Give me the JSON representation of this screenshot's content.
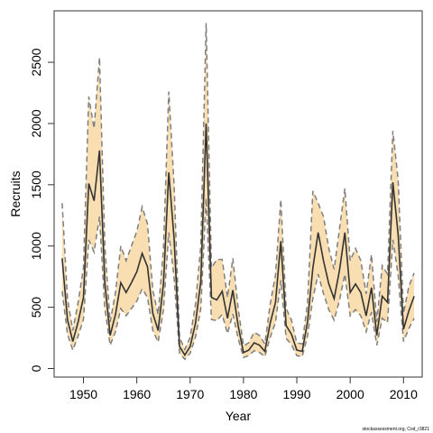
{
  "chart_data": {
    "type": "line",
    "xlabel": "Year",
    "ylabel": "Recruits",
    "xlim": [
      1944.5,
      2013.5
    ],
    "ylim": [
      -70,
      2920
    ],
    "x_ticks": [
      1950,
      1960,
      1970,
      1980,
      1990,
      2000,
      2010
    ],
    "y_ticks": [
      0,
      500,
      1000,
      1500,
      2000,
      2500
    ],
    "grid": false,
    "legend": "none",
    "colors": {
      "band": "#f8deb0",
      "bounds": "#7f7f7f",
      "estimate": "#333333",
      "frame": "#333333"
    },
    "x": [
      1946,
      1947,
      1948,
      1949,
      1950,
      1951,
      1952,
      1953,
      1954,
      1955,
      1956,
      1957,
      1958,
      1959,
      1960,
      1961,
      1962,
      1963,
      1964,
      1965,
      1966,
      1967,
      1968,
      1969,
      1970,
      1971,
      1972,
      1973,
      1974,
      1975,
      1976,
      1977,
      1978,
      1979,
      1980,
      1981,
      1982,
      1983,
      1984,
      1985,
      1986,
      1987,
      1988,
      1989,
      1990,
      1991,
      1992,
      1993,
      1994,
      1995,
      1996,
      1997,
      1998,
      1999,
      2000,
      2001,
      2002,
      2003,
      2004,
      2005,
      2006,
      2007,
      2008,
      2009,
      2010,
      2011,
      2012
    ],
    "series": [
      {
        "values": [
          900,
          400,
          220,
          380,
          580,
          1510,
          1370,
          1780,
          700,
          270,
          440,
          700,
          620,
          700,
          790,
          940,
          830,
          450,
          310,
          690,
          1600,
          1060,
          180,
          110,
          180,
          370,
          710,
          2000,
          580,
          560,
          630,
          410,
          640,
          350,
          130,
          150,
          210,
          190,
          140,
          370,
          540,
          1040,
          350,
          280,
          150,
          140,
          380,
          820,
          1110,
          880,
          690,
          570,
          800,
          1110,
          620,
          690,
          620,
          430,
          660,
          270,
          590,
          540,
          1520,
          1090,
          320,
          470,
          590
        ]
      },
      {
        "values": [
          1350,
          570,
          310,
          540,
          820,
          2220,
          1960,
          2540,
          1000,
          380,
          620,
          1000,
          880,
          1000,
          1120,
          1320,
          1180,
          640,
          440,
          980,
          2260,
          1500,
          255,
          155,
          255,
          525,
          1000,
          2820,
          820,
          890,
          890,
          580,
          900,
          495,
          185,
          210,
          295,
          270,
          200,
          525,
          765,
          1380,
          490,
          395,
          210,
          200,
          535,
          1450,
          1350,
          1240,
          980,
          810,
          1140,
          1470,
          880,
          980,
          880,
          610,
          930,
          380,
          840,
          770,
          1940,
          1540,
          450,
          670,
          780
        ]
      },
      {
        "values": [
          630,
          280,
          150,
          265,
          400,
          1050,
          950,
          1240,
          490,
          190,
          300,
          490,
          430,
          490,
          550,
          650,
          580,
          310,
          215,
          480,
          1110,
          740,
          125,
          75,
          125,
          255,
          490,
          1390,
          400,
          390,
          440,
          285,
          445,
          245,
          90,
          105,
          145,
          130,
          97,
          255,
          375,
          720,
          245,
          195,
          105,
          97,
          265,
          570,
          770,
          610,
          480,
          395,
          555,
          770,
          430,
          480,
          430,
          300,
          460,
          190,
          410,
          375,
          1050,
          760,
          220,
          325,
          410
        ]
      }
    ],
    "credit": "stockassessment.org, Cod_r3821"
  }
}
